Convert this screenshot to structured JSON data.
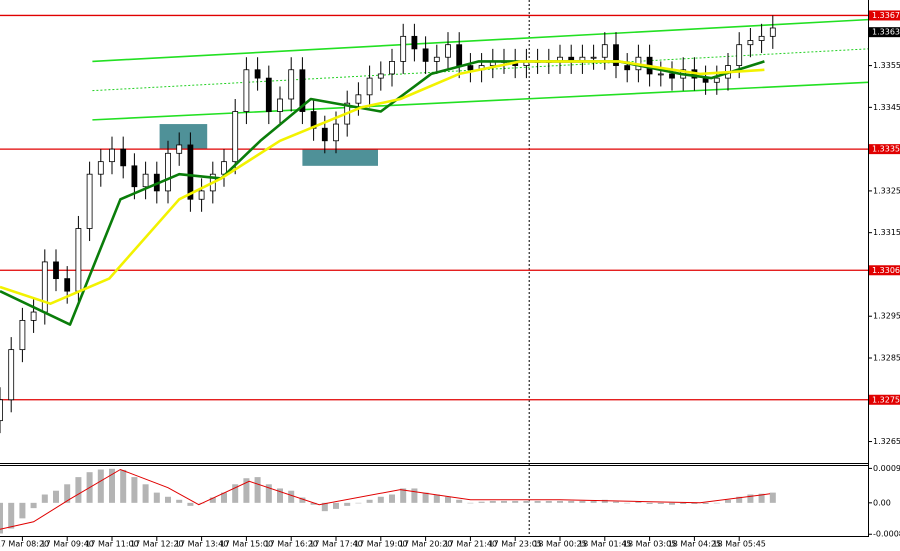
{
  "chart_data": {
    "type": "candlestick",
    "xlim": [
      0,
      310
    ],
    "ylim": [
      1.32601,
      1.33707
    ],
    "yticks": [
      1.3355,
      1.3345,
      1.3325,
      1.3315,
      1.3295,
      1.3285,
      1.3265
    ],
    "xticks": [
      {
        "value": 8,
        "label": "17 Mar 08:20"
      },
      {
        "value": 24,
        "label": "17 Mar 09:40"
      },
      {
        "value": 40,
        "label": "17 Mar 11:00"
      },
      {
        "value": 56,
        "label": "17 Mar 12:20"
      },
      {
        "value": 72,
        "label": "17 Mar 13:40"
      },
      {
        "value": 88,
        "label": "17 Mar 15:00"
      },
      {
        "value": 104,
        "label": "17 Mar 16:20"
      },
      {
        "value": 120,
        "label": "17 Mar 17:40"
      },
      {
        "value": 136,
        "label": "17 Mar 19:00"
      },
      {
        "value": 152,
        "label": "17 Mar 20:20"
      },
      {
        "value": 168,
        "label": "17 Mar 21:40"
      },
      {
        "value": 184,
        "label": "17 Mar 23:05"
      },
      {
        "value": 200,
        "label": "18 Mar 00:25"
      },
      {
        "value": 216,
        "label": "18 Mar 01:45"
      },
      {
        "value": 232,
        "label": "18 Mar 03:05"
      },
      {
        "value": 248,
        "label": "18 Mar 04:25"
      },
      {
        "value": 264,
        "label": "18 Mar 05:45"
      }
    ],
    "x": [
      0,
      4,
      8,
      12,
      16,
      20,
      24,
      28,
      32,
      36,
      40,
      44,
      48,
      52,
      56,
      60,
      64,
      68,
      72,
      76,
      80,
      84,
      88,
      92,
      96,
      100,
      104,
      108,
      112,
      116,
      120,
      124,
      128,
      132,
      136,
      140,
      144,
      148,
      152,
      156,
      160,
      164,
      168,
      172,
      176,
      180,
      184,
      188,
      192,
      196,
      200,
      204,
      208,
      212,
      216,
      220,
      224,
      228,
      232,
      236,
      240,
      244,
      248,
      252,
      256,
      260,
      264,
      268,
      272,
      276
    ],
    "open": [
      1.327,
      1.3275,
      1.3287,
      1.3294,
      1.3296,
      1.3308,
      1.3304,
      1.3301,
      1.3316,
      1.3329,
      1.3332,
      1.3335,
      1.3331,
      1.3326,
      1.3329,
      1.3325,
      1.3334,
      1.3336,
      1.3323,
      1.3325,
      1.3329,
      1.3332,
      1.3344,
      1.3354,
      1.3352,
      1.3344,
      1.3347,
      1.3354,
      1.3344,
      1.334,
      1.3337,
      1.3341,
      1.3346,
      1.3348,
      1.3352,
      1.3353,
      1.3356,
      1.3362,
      1.3359,
      1.3356,
      1.3357,
      1.336,
      1.3355,
      1.3354,
      1.3355,
      1.3356,
      1.3356,
      1.3355,
      1.3356,
      1.3356,
      1.3356,
      1.3357,
      1.3356,
      1.3357,
      1.3357,
      1.336,
      1.3355,
      1.3354,
      1.3357,
      1.3353,
      1.3353,
      1.3352,
      1.3354,
      1.3352,
      1.3351,
      1.3352,
      1.3355,
      1.336,
      1.3361,
      1.3362
    ],
    "high": [
      1.3278,
      1.329,
      1.3297,
      1.3299,
      1.3311,
      1.3311,
      1.3307,
      1.3319,
      1.3332,
      1.3335,
      1.3338,
      1.3338,
      1.3334,
      1.3332,
      1.3332,
      1.3337,
      1.3339,
      1.3339,
      1.3328,
      1.3332,
      1.3335,
      1.3347,
      1.3357,
      1.3357,
      1.3355,
      1.335,
      1.3357,
      1.3357,
      1.3347,
      1.3343,
      1.3344,
      1.3349,
      1.3351,
      1.3355,
      1.3356,
      1.3359,
      1.3365,
      1.3365,
      1.3362,
      1.336,
      1.3363,
      1.3363,
      1.3358,
      1.3358,
      1.3359,
      1.3359,
      1.3359,
      1.3359,
      1.3359,
      1.3359,
      1.336,
      1.336,
      1.336,
      1.336,
      1.3363,
      1.3363,
      1.3358,
      1.336,
      1.336,
      1.3356,
      1.3356,
      1.3357,
      1.3357,
      1.3355,
      1.3355,
      1.3358,
      1.3363,
      1.3364,
      1.3365,
      1.3367
    ],
    "low": [
      1.3267,
      1.3272,
      1.3284,
      1.3291,
      1.3293,
      1.3301,
      1.3298,
      1.3298,
      1.3313,
      1.3326,
      1.3329,
      1.3328,
      1.3323,
      1.3323,
      1.3322,
      1.3322,
      1.3331,
      1.332,
      1.332,
      1.3322,
      1.3326,
      1.3329,
      1.3341,
      1.3349,
      1.3341,
      1.3341,
      1.3344,
      1.3341,
      1.3337,
      1.3334,
      1.3334,
      1.3338,
      1.3343,
      1.3345,
      1.3349,
      1.335,
      1.3353,
      1.3356,
      1.3353,
      1.3353,
      1.3354,
      1.3352,
      1.3351,
      1.3351,
      1.3352,
      1.3353,
      1.3352,
      1.3352,
      1.3353,
      1.3353,
      1.3353,
      1.3353,
      1.3353,
      1.3354,
      1.3354,
      1.3352,
      1.3351,
      1.3351,
      1.335,
      1.335,
      1.3349,
      1.3349,
      1.3349,
      1.3348,
      1.3348,
      1.3349,
      1.3352,
      1.3357,
      1.3358,
      1.3359
    ],
    "close": [
      1.3275,
      1.3287,
      1.3294,
      1.3296,
      1.3308,
      1.3304,
      1.3301,
      1.3316,
      1.3329,
      1.3332,
      1.3335,
      1.3331,
      1.3326,
      1.3329,
      1.3325,
      1.3334,
      1.3336,
      1.3323,
      1.3325,
      1.3329,
      1.3332,
      1.3344,
      1.3354,
      1.3352,
      1.3344,
      1.3347,
      1.3354,
      1.3344,
      1.334,
      1.3337,
      1.3341,
      1.3346,
      1.3348,
      1.3352,
      1.3353,
      1.3356,
      1.3362,
      1.3359,
      1.3356,
      1.3357,
      1.336,
      1.3355,
      1.3354,
      1.3355,
      1.3356,
      1.3356,
      1.3355,
      1.3356,
      1.3356,
      1.3356,
      1.3357,
      1.3356,
      1.3357,
      1.3357,
      1.336,
      1.3355,
      1.3354,
      1.3357,
      1.3353,
      1.3353,
      1.3352,
      1.3354,
      1.3352,
      1.3351,
      1.3352,
      1.3355,
      1.336,
      1.3361,
      1.3362,
      1.3364
    ],
    "ma": [
      {
        "color": "#0a7d0a",
        "x": [
          0,
          25,
          43,
          64,
          79,
          93,
          111,
          136,
          154,
          171,
          221,
          243,
          254,
          273
        ],
        "values": [
          1.3301,
          1.3293,
          1.3323,
          1.3329,
          1.3328,
          1.3337,
          1.3347,
          1.3344,
          1.3353,
          1.3356,
          1.3356,
          1.3353,
          1.3352,
          1.3356
        ]
      },
      {
        "color": "#f2f200",
        "x": [
          0,
          18,
          39,
          64,
          79,
          100,
          129,
          143,
          164,
          186,
          221,
          250,
          273
        ],
        "values": [
          1.3302,
          1.3298,
          1.3304,
          1.3323,
          1.3328,
          1.3337,
          1.3345,
          1.3347,
          1.3353,
          1.3356,
          1.3356,
          1.3353,
          1.3354
        ]
      }
    ],
    "trendlines": [
      {
        "color": "#22e022",
        "dash": false,
        "x": [
          33,
          310
        ],
        "values": [
          1.3356,
          1.3366
        ]
      },
      {
        "color": "#22e022",
        "dash": false,
        "x": [
          33,
          310
        ],
        "values": [
          1.3342,
          1.3351
        ]
      },
      {
        "color": "#22d022",
        "dash": true,
        "x": [
          33,
          310
        ],
        "values": [
          1.3349,
          1.3359
        ]
      }
    ],
    "zones": [
      {
        "color": "#4f9198",
        "x": [
          57,
          74
        ],
        "values": [
          1.3341,
          1.3335
        ]
      },
      {
        "color": "#4f9198",
        "x": [
          108,
          135
        ],
        "values": [
          1.3335,
          1.3331
        ]
      }
    ],
    "vline": 189,
    "levels": [
      {
        "value": 1.3367,
        "color": "#e00000"
      },
      {
        "value": 1.3335,
        "color": "#e00000"
      },
      {
        "value": 1.3306,
        "color": "#e00000"
      },
      {
        "value": 1.3275,
        "color": "#e00000"
      }
    ],
    "current_price": {
      "value": 1.3363,
      "color": "#000000"
    },
    "macd": {
      "ylim": [
        -0.00085,
        0.001
      ],
      "yticks": [
        0.00091,
        {
          "value": 0,
          "label": "0.00"
        },
        -0.00083
      ],
      "histogram": {
        "color": "#b4b4b4",
        "values": [
          -0.00081,
          -0.00068,
          -0.00041,
          -0.00014,
          0.00022,
          0.00032,
          0.00049,
          0.00068,
          0.00081,
          0.00088,
          0.0009,
          0.00087,
          0.00068,
          0.00049,
          0.00027,
          0.00016,
          8e-05,
          -8e-05,
          0,
          0.00014,
          0.00027,
          0.00049,
          0.00065,
          0.00068,
          0.00049,
          0.00038,
          0.00032,
          0.00014,
          -5e-05,
          -0.00022,
          -0.00016,
          -8e-05,
          0,
          8e-05,
          0.00016,
          0.00022,
          0.00038,
          0.00038,
          0.00027,
          0.00022,
          0.00016,
          8e-05,
          0,
          3e-05,
          5e-05,
          5e-05,
          5e-05,
          5e-05,
          5e-05,
          5e-05,
          5e-05,
          5e-05,
          5e-05,
          5e-05,
          8e-05,
          3e-05,
          0,
          3e-05,
          -3e-05,
          -3e-05,
          -5e-05,
          -3e-05,
          -3e-05,
          -3e-05,
          0,
          8e-05,
          0.00016,
          0.00022,
          0.00024,
          0.00027
        ]
      },
      "signal": {
        "color": "#e00000",
        "x": [
          0,
          12,
          25,
          43,
          60,
          71,
          89,
          114,
          143,
          168,
          200,
          232,
          250,
          275
        ],
        "values": [
          -0.0007,
          -0.0005,
          0.0001,
          0.00088,
          0.0004,
          -5e-05,
          0.00057,
          -5e-05,
          0.00035,
          8e-05,
          8e-05,
          3e-05,
          0,
          0.00024
        ]
      }
    }
  }
}
